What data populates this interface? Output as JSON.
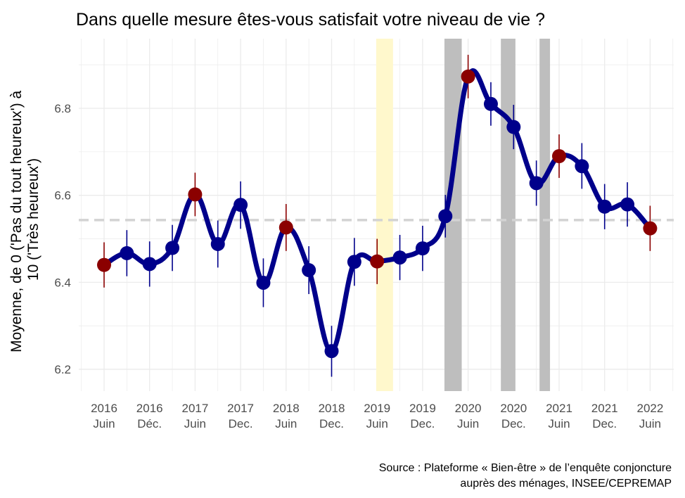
{
  "chart_data": {
    "type": "line",
    "title": "Dans quelle mesure êtes-vous satisfait votre niveau de vie ?",
    "ylabel": [
      "Moyenne, de 0 ('Pas du tout heureux') à",
      "10 ('Très heureux')"
    ],
    "caption": [
      "Source : Plateforme « Bien-être » de l’enquête conjoncture",
      "auprès des ménages, INSEE/CEPREMAP"
    ],
    "ylim": [
      6.15,
      6.96
    ],
    "y_ticks": [
      6.2,
      6.4,
      6.6,
      6.8
    ],
    "x_ticks": [
      {
        "year": "2016",
        "period": "Juin"
      },
      {
        "year": "2016",
        "period": "Déc."
      },
      {
        "year": "2017",
        "period": "Juin"
      },
      {
        "year": "2017",
        "period": "Dec."
      },
      {
        "year": "2018",
        "period": "Juin"
      },
      {
        "year": "2018",
        "period": "Dec."
      },
      {
        "year": "2019",
        "period": "Juin"
      },
      {
        "year": "2019",
        "period": "Dec."
      },
      {
        "year": "2020",
        "period": "Juin"
      },
      {
        "year": "2020",
        "period": "Dec."
      },
      {
        "year": "2021",
        "period": "Juin"
      },
      {
        "year": "2021",
        "period": "Dec."
      },
      {
        "year": "2022",
        "period": "Juin"
      }
    ],
    "reference_line": 6.543,
    "shaded_periods": [
      {
        "x_start": 5.98,
        "x_end": 6.35,
        "color": "#fff8cc"
      },
      {
        "x_start": 7.48,
        "x_end": 7.86,
        "color": "#bebebe"
      },
      {
        "x_start": 8.72,
        "x_end": 9.04,
        "color": "#bebebe"
      },
      {
        "x_start": 9.57,
        "x_end": 9.8,
        "color": "#bebebe"
      }
    ],
    "series": [
      {
        "x": [
          0,
          0.5,
          1,
          1.5,
          2,
          2.5,
          3,
          3.5,
          4,
          4.5,
          5,
          5.5,
          6,
          6.5,
          7,
          7.5,
          8,
          8.5,
          9,
          9.5,
          10,
          10.5,
          11,
          11.5,
          12
        ],
        "y": [
          6.44,
          6.467,
          6.442,
          6.479,
          6.602,
          6.488,
          6.578,
          6.399,
          6.526,
          6.428,
          6.242,
          6.447,
          6.448,
          6.457,
          6.478,
          6.552,
          6.873,
          6.81,
          6.757,
          6.628,
          6.69,
          6.667,
          6.574,
          6.579,
          6.524
        ],
        "err_low": [
          6.388,
          6.414,
          6.39,
          6.426,
          6.552,
          6.434,
          6.523,
          6.343,
          6.472,
          6.373,
          6.183,
          6.392,
          6.396,
          6.405,
          6.426,
          6.503,
          6.823,
          6.76,
          6.706,
          6.576,
          6.64,
          6.615,
          6.522,
          6.528,
          6.472
        ],
        "err_high": [
          6.492,
          6.52,
          6.494,
          6.532,
          6.652,
          6.542,
          6.632,
          6.455,
          6.58,
          6.483,
          6.3,
          6.502,
          6.5,
          6.509,
          6.53,
          6.601,
          6.923,
          6.86,
          6.808,
          6.68,
          6.74,
          6.72,
          6.626,
          6.63,
          6.576
        ],
        "highlight": [
          true,
          false,
          false,
          false,
          true,
          false,
          false,
          false,
          true,
          false,
          false,
          false,
          true,
          false,
          false,
          false,
          true,
          false,
          false,
          false,
          true,
          false,
          false,
          false,
          true
        ]
      }
    ],
    "colors": {
      "line": "#00008b",
      "point": "#00008b",
      "highlight_point": "#8b0000",
      "error_bar": "#00008b",
      "highlight_error_bar": "#8b0000",
      "reference_line": "#d3d3d3",
      "grid": "#ebebeb"
    },
    "grid": true,
    "legend": "none"
  }
}
